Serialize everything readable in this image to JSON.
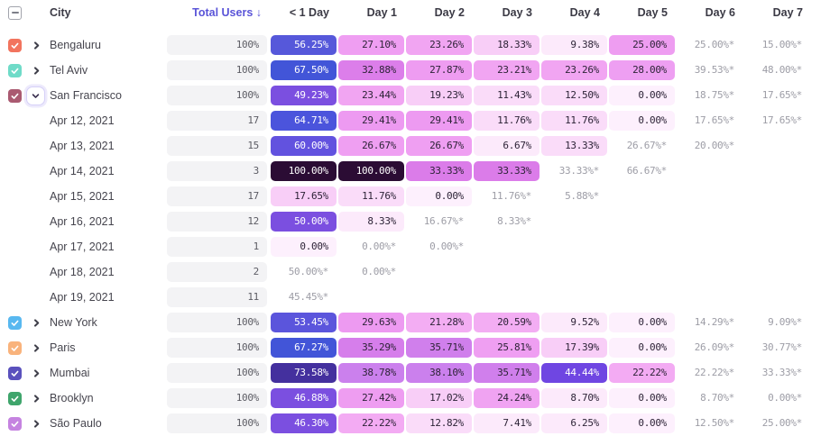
{
  "colors": {
    "accent_sort": "#5a54d8",
    "header_text": "#3b3a45",
    "row_text": "#46454e",
    "total_pill_bg": "#f3f3f5",
    "estimate_text": "#9d9da6",
    "cell_text_dark": "#2d2337",
    "cell_text_light": "#ffffff"
  },
  "header": {
    "select_all_state": "indeterminate",
    "city_label": "City",
    "total_users_label": "Total Users ↓",
    "day_columns": [
      "< 1 Day",
      "Day 1",
      "Day 2",
      "Day 3",
      "Day 4",
      "Day 5",
      "Day 6",
      "Day 7"
    ]
  },
  "rows": [
    {
      "kind": "city",
      "label": "Bengaluru",
      "checkbox_color": "#f2745e",
      "checked": true,
      "expander": "collapsed",
      "total": "100%",
      "cells": [
        {
          "t": "56.25%",
          "bg": "#5658da",
          "fg": "light"
        },
        {
          "t": "27.10%",
          "bg": "#ef9ef2",
          "fg": "dark"
        },
        {
          "t": "23.26%",
          "bg": "#f1a5f2",
          "fg": "dark"
        },
        {
          "t": "18.33%",
          "bg": "#f8cef7",
          "fg": "dark"
        },
        {
          "t": "9.38%",
          "bg": "#fceafb",
          "fg": "dark"
        },
        {
          "t": "25.00%",
          "bg": "#ee9df1",
          "fg": "dark"
        },
        {
          "t": "25.00%*",
          "plain": true
        },
        {
          "t": "15.00%*",
          "plain": true
        }
      ]
    },
    {
      "kind": "city",
      "label": "Tel Aviv",
      "checkbox_color": "#6fdbc8",
      "checked": true,
      "expander": "collapsed",
      "total": "100%",
      "cells": [
        {
          "t": "67.50%",
          "bg": "#4255d8",
          "fg": "light"
        },
        {
          "t": "32.88%",
          "bg": "#dc7eea",
          "fg": "dark"
        },
        {
          "t": "27.87%",
          "bg": "#ee9cf1",
          "fg": "dark"
        },
        {
          "t": "23.21%",
          "bg": "#f1a5f2",
          "fg": "dark"
        },
        {
          "t": "23.26%",
          "bg": "#f1a5f2",
          "fg": "dark"
        },
        {
          "t": "28.00%",
          "bg": "#ee9ff2",
          "fg": "dark"
        },
        {
          "t": "39.53%*",
          "plain": true
        },
        {
          "t": "48.00%*",
          "plain": true
        }
      ]
    },
    {
      "kind": "city",
      "label": "San Francisco",
      "checkbox_color": "#aa5a71",
      "checked": true,
      "expander": "expanded",
      "total": "100%",
      "cells": [
        {
          "t": "49.23%",
          "bg": "#7b4fe0",
          "fg": "light"
        },
        {
          "t": "23.44%",
          "bg": "#f1a5f2",
          "fg": "dark"
        },
        {
          "t": "19.23%",
          "bg": "#f8cef7",
          "fg": "dark"
        },
        {
          "t": "11.43%",
          "bg": "#fadcf9",
          "fg": "dark"
        },
        {
          "t": "12.50%",
          "bg": "#fadcf9",
          "fg": "dark"
        },
        {
          "t": "0.00%",
          "bg": "#fdf0fd",
          "fg": "dark"
        },
        {
          "t": "18.75%*",
          "plain": true
        },
        {
          "t": "17.65%*",
          "plain": true
        }
      ]
    },
    {
      "kind": "date",
      "label": "Apr 12, 2021",
      "total": "17",
      "cells": [
        {
          "t": "64.71%",
          "bg": "#4b54dc",
          "fg": "light"
        },
        {
          "t": "29.41%",
          "bg": "#ed9af1",
          "fg": "dark"
        },
        {
          "t": "29.41%",
          "bg": "#ed9af1",
          "fg": "dark"
        },
        {
          "t": "11.76%",
          "bg": "#fadcf9",
          "fg": "dark"
        },
        {
          "t": "11.76%",
          "bg": "#fadcf9",
          "fg": "dark"
        },
        {
          "t": "0.00%",
          "bg": "#fdf0fd",
          "fg": "dark"
        },
        {
          "t": "17.65%*",
          "plain": true
        },
        {
          "t": "17.65%*",
          "plain": true
        }
      ]
    },
    {
      "kind": "date",
      "label": "Apr 13, 2021",
      "total": "15",
      "cells": [
        {
          "t": "60.00%",
          "bg": "#6252df",
          "fg": "light"
        },
        {
          "t": "26.67%",
          "bg": "#ef9ff2",
          "fg": "dark"
        },
        {
          "t": "26.67%",
          "bg": "#ef9ff2",
          "fg": "dark"
        },
        {
          "t": "6.67%",
          "bg": "#fceafb",
          "fg": "dark"
        },
        {
          "t": "13.33%",
          "bg": "#fadcf9",
          "fg": "dark"
        },
        {
          "t": "26.67%*",
          "plain": true
        },
        {
          "t": "20.00%*",
          "plain": true
        },
        null
      ]
    },
    {
      "kind": "date",
      "label": "Apr 14, 2021",
      "total": "3",
      "cells": [
        {
          "t": "100.00%",
          "bg": "#2b0c34",
          "fg": "light"
        },
        {
          "t": "100.00%",
          "bg": "#2b0c34",
          "fg": "light"
        },
        {
          "t": "33.33%",
          "bg": "#db7ce9",
          "fg": "dark"
        },
        {
          "t": "33.33%",
          "bg": "#db7ce9",
          "fg": "dark"
        },
        {
          "t": "33.33%*",
          "plain": true
        },
        {
          "t": "66.67%*",
          "plain": true
        },
        null,
        null
      ]
    },
    {
      "kind": "date",
      "label": "Apr 15, 2021",
      "total": "17",
      "cells": [
        {
          "t": "17.65%",
          "bg": "#f8cef7",
          "fg": "dark"
        },
        {
          "t": "11.76%",
          "bg": "#fadcf9",
          "fg": "dark"
        },
        {
          "t": "0.00%",
          "bg": "#fdf0fd",
          "fg": "dark"
        },
        {
          "t": "11.76%*",
          "plain": true
        },
        {
          "t": "5.88%*",
          "plain": true
        },
        null,
        null,
        null
      ]
    },
    {
      "kind": "date",
      "label": "Apr 16, 2021",
      "total": "12",
      "cells": [
        {
          "t": "50.00%",
          "bg": "#7b4fe0",
          "fg": "light"
        },
        {
          "t": "8.33%",
          "bg": "#fceafb",
          "fg": "dark"
        },
        {
          "t": "16.67%*",
          "plain": true
        },
        {
          "t": "8.33%*",
          "plain": true
        },
        null,
        null,
        null,
        null
      ]
    },
    {
      "kind": "date",
      "label": "Apr 17, 2021",
      "total": "1",
      "cells": [
        {
          "t": "0.00%",
          "bg": "#fdf0fd",
          "fg": "dark"
        },
        {
          "t": "0.00%*",
          "plain": true
        },
        {
          "t": "0.00%*",
          "plain": true
        },
        null,
        null,
        null,
        null,
        null
      ]
    },
    {
      "kind": "date",
      "label": "Apr 18, 2021",
      "total": "2",
      "cells": [
        {
          "t": "50.00%*",
          "plain": true
        },
        {
          "t": "0.00%*",
          "plain": true
        },
        null,
        null,
        null,
        null,
        null,
        null
      ]
    },
    {
      "kind": "date",
      "label": "Apr 19, 2021",
      "total": "11",
      "cells": [
        {
          "t": "45.45%*",
          "plain": true
        },
        null,
        null,
        null,
        null,
        null,
        null,
        null
      ]
    },
    {
      "kind": "city",
      "label": "New York",
      "checkbox_color": "#58b8f0",
      "checked": true,
      "expander": "collapsed",
      "total": "100%",
      "cells": [
        {
          "t": "53.45%",
          "bg": "#5b55dc",
          "fg": "light"
        },
        {
          "t": "29.63%",
          "bg": "#ed9af1",
          "fg": "dark"
        },
        {
          "t": "21.28%",
          "bg": "#f3adf3",
          "fg": "dark"
        },
        {
          "t": "20.59%",
          "bg": "#f3adf3",
          "fg": "dark"
        },
        {
          "t": "9.52%",
          "bg": "#fceafb",
          "fg": "dark"
        },
        {
          "t": "0.00%",
          "bg": "#fdf0fd",
          "fg": "dark"
        },
        {
          "t": "14.29%*",
          "plain": true
        },
        {
          "t": "9.09%*",
          "plain": true
        }
      ]
    },
    {
      "kind": "city",
      "label": "Paris",
      "checkbox_color": "#f9b37c",
      "checked": true,
      "expander": "collapsed",
      "total": "100%",
      "cells": [
        {
          "t": "67.27%",
          "bg": "#4255d8",
          "fg": "light"
        },
        {
          "t": "35.29%",
          "bg": "#d67eeb",
          "fg": "dark"
        },
        {
          "t": "35.71%",
          "bg": "#d07fec",
          "fg": "dark"
        },
        {
          "t": "25.81%",
          "bg": "#ef9ff2",
          "fg": "dark"
        },
        {
          "t": "17.39%",
          "bg": "#f8cef7",
          "fg": "dark"
        },
        {
          "t": "0.00%",
          "bg": "#fdf0fd",
          "fg": "dark"
        },
        {
          "t": "26.09%*",
          "plain": true
        },
        {
          "t": "30.77%*",
          "plain": true
        }
      ]
    },
    {
      "kind": "city",
      "label": "Mumbai",
      "checkbox_color": "#5a51bd",
      "checked": true,
      "expander": "collapsed",
      "total": "100%",
      "cells": [
        {
          "t": "73.58%",
          "bg": "#44309e",
          "fg": "light"
        },
        {
          "t": "38.78%",
          "bg": "#cb80ed",
          "fg": "dark"
        },
        {
          "t": "38.10%",
          "bg": "#cb80ed",
          "fg": "dark"
        },
        {
          "t": "35.71%",
          "bg": "#d07fec",
          "fg": "dark"
        },
        {
          "t": "44.44%",
          "bg": "#6f46e2",
          "fg": "light"
        },
        {
          "t": "22.22%",
          "bg": "#f3abf3",
          "fg": "dark"
        },
        {
          "t": "22.22%*",
          "plain": true
        },
        {
          "t": "33.33%*",
          "plain": true
        }
      ]
    },
    {
      "kind": "city",
      "label": "Brooklyn",
      "checkbox_color": "#3fa56c",
      "checked": true,
      "expander": "collapsed",
      "total": "100%",
      "cells": [
        {
          "t": "46.88%",
          "bg": "#7b4fe0",
          "fg": "light"
        },
        {
          "t": "27.42%",
          "bg": "#ee9df1",
          "fg": "dark"
        },
        {
          "t": "17.02%",
          "bg": "#f8cef7",
          "fg": "dark"
        },
        {
          "t": "24.24%",
          "bg": "#f0a3f2",
          "fg": "dark"
        },
        {
          "t": "8.70%",
          "bg": "#fceafb",
          "fg": "dark"
        },
        {
          "t": "0.00%",
          "bg": "#fdf0fd",
          "fg": "dark"
        },
        {
          "t": "8.70%*",
          "plain": true
        },
        {
          "t": "0.00%*",
          "plain": true
        }
      ]
    },
    {
      "kind": "city",
      "label": "São Paulo",
      "checkbox_color": "#c583e0",
      "checked": true,
      "expander": "collapsed",
      "total": "100%",
      "cells": [
        {
          "t": "46.30%",
          "bg": "#7b4fe0",
          "fg": "light"
        },
        {
          "t": "22.22%",
          "bg": "#f3abf3",
          "fg": "dark"
        },
        {
          "t": "12.82%",
          "bg": "#fadcf9",
          "fg": "dark"
        },
        {
          "t": "7.41%",
          "bg": "#fceafb",
          "fg": "dark"
        },
        {
          "t": "6.25%",
          "bg": "#fceafb",
          "fg": "dark"
        },
        {
          "t": "0.00%",
          "bg": "#fdf0fd",
          "fg": "dark"
        },
        {
          "t": "12.50%*",
          "plain": true
        },
        {
          "t": "25.00%*",
          "plain": true
        }
      ]
    }
  ]
}
